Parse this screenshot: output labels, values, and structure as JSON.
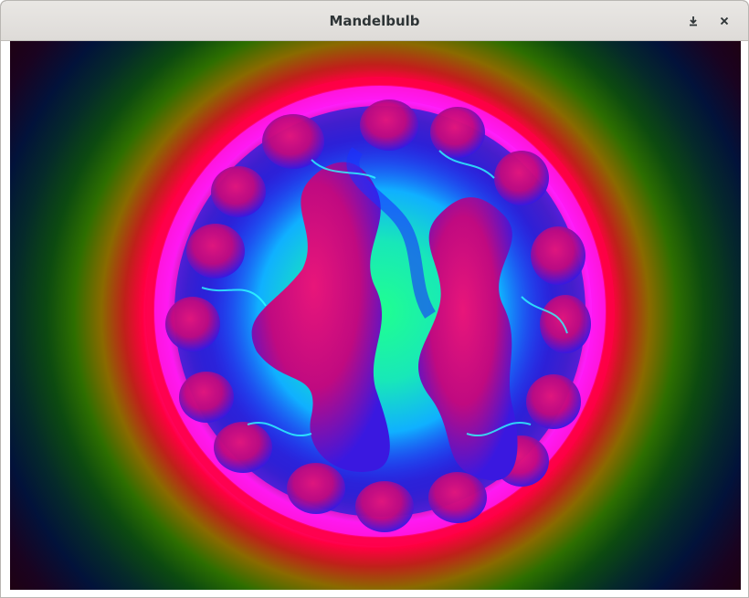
{
  "window": {
    "title": "Mandelbulb",
    "minimize_icon": "minimize-icon",
    "close_icon": "close-icon"
  },
  "render": {
    "description_icon": "fractal-render-image",
    "colors": {
      "core": "#00ff9a",
      "cyan": "#18d8c8",
      "blue": "#1a4dff",
      "magenta": "#ff19f0",
      "crimson": "#d0106a",
      "red": "#ff0040",
      "olive": "#8a6a00",
      "green": "#2d6e00",
      "navy": "#02123a",
      "maroon": "#22000a"
    }
  }
}
